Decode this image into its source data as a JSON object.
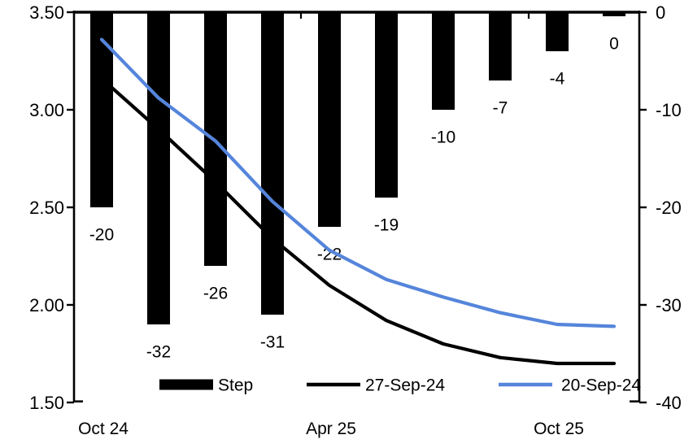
{
  "chart_data": {
    "type": "bar+line combo",
    "title": "",
    "num_categories": 10,
    "x_axis": {
      "tick_labels": [
        {
          "label": "Oct 24",
          "index": 0
        },
        {
          "label": "Apr 25",
          "index": 4
        },
        {
          "label": "Oct 25",
          "index": 8
        }
      ],
      "top_boundary_ticks": [
        3.5,
        7.5
      ]
    },
    "left_axis": {
      "min": 1.5,
      "max": 3.5,
      "ticks": [
        {
          "value": 3.5,
          "label": "3.50"
        },
        {
          "value": 3.0,
          "label": "3.00"
        },
        {
          "value": 2.5,
          "label": "2.50"
        },
        {
          "value": 2.0,
          "label": "2.00"
        },
        {
          "value": 1.5,
          "label": "1.50"
        }
      ]
    },
    "right_axis": {
      "min": -40,
      "max": 0,
      "ticks": [
        {
          "value": 0,
          "label": "0"
        },
        {
          "value": -10,
          "label": "-10"
        },
        {
          "value": -20,
          "label": "-20"
        },
        {
          "value": -30,
          "label": "-30"
        },
        {
          "value": -40,
          "label": "-40"
        }
      ]
    },
    "bar_series": {
      "name": "Step",
      "axis": "right",
      "color": "#000000",
      "values": [
        -20,
        -32,
        -26,
        -31,
        -22,
        -19,
        -10,
        -7,
        -4,
        0
      ],
      "data_labels": [
        "-20",
        "-32",
        "-26",
        "-31",
        "-22",
        "-19",
        "-10",
        "-7",
        "-4",
        "0"
      ]
    },
    "line_series": [
      {
        "name": "27-Sep-24",
        "axis": "left",
        "color": "#000000",
        "values": [
          3.16,
          2.9,
          2.63,
          2.34,
          2.1,
          1.92,
          1.8,
          1.73,
          1.7,
          1.7
        ]
      },
      {
        "name": "20-Sep-24",
        "axis": "left",
        "color": "#5585DB",
        "values": [
          3.36,
          3.06,
          2.84,
          2.53,
          2.28,
          2.13,
          2.04,
          1.96,
          1.9,
          1.89
        ]
      }
    ],
    "legend": {
      "position": "bottom-inside",
      "items": [
        {
          "swatch": "bar",
          "label": "Step",
          "color": "#000000"
        },
        {
          "swatch": "line",
          "label": "27-Sep-24",
          "color": "#000000"
        },
        {
          "swatch": "line",
          "label": "20-Sep-24",
          "color": "#5585DB"
        }
      ]
    },
    "grid": "off",
    "background_color": "#ffffff",
    "axis_color": "#000000"
  }
}
